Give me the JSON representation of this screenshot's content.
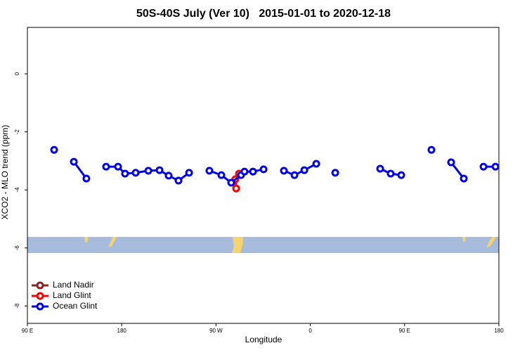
{
  "chart_data": {
    "type": "line",
    "title": "50S-40S July (Ver 10)   2015-01-01 to 2020-12-18",
    "x_label": "Longitude",
    "y_label": "XCO2 - MLO trend (ppm)",
    "xlim": [
      90,
      540
    ],
    "xticks": [
      {
        "value": 90,
        "label": "90 E"
      },
      {
        "value": 180,
        "label": "180"
      },
      {
        "value": 270,
        "label": "90 W"
      },
      {
        "value": 360,
        "label": "0"
      },
      {
        "value": 450,
        "label": "90 E"
      },
      {
        "value": 540,
        "label": "180"
      }
    ],
    "ylim": [
      -8.6,
      1.6
    ],
    "yticks": [
      0,
      -2,
      -4,
      -6,
      -8
    ],
    "legend": "bottom-left",
    "series": [
      {
        "name": "Land Nadir",
        "color": "#8b2323",
        "x": [],
        "values": []
      },
      {
        "name": "Land Glint",
        "color": "#ff0000",
        "x": [
          289.2,
          288.5,
          291.9
        ],
        "values": [
          -3.95,
          -3.63,
          -3.44
        ]
      },
      {
        "name": "Ocean Glint",
        "color": "#0000ee",
        "x": [
          115.5,
          null,
          134.3,
          146.3,
          null,
          165.1,
          176.5,
          183.2,
          193.3,
          205.4,
          216.1,
          224.8,
          234.2,
          244.3,
          null,
          263.7,
          275.1,
          284.5,
          293.9,
          297.2,
          305.3,
          315.4,
          null,
          334.8,
          344.9,
          354.3,
          365.7,
          null,
          383.8,
          null,
          426.7,
          436.7,
          446.8,
          null,
          475.6,
          null,
          494.4,
          506.5,
          null,
          525.3,
          536.7
        ],
        "values": [
          -2.62,
          null,
          -3.03,
          -3.61,
          null,
          -3.2,
          -3.2,
          -3.44,
          -3.41,
          -3.34,
          -3.32,
          -3.51,
          -3.68,
          -3.41,
          null,
          -3.34,
          -3.49,
          -3.75,
          -3.49,
          -3.37,
          -3.37,
          -3.29,
          null,
          -3.34,
          -3.49,
          -3.32,
          -3.1,
          null,
          -3.41,
          null,
          -3.27,
          -3.44,
          -3.49,
          null,
          -2.62,
          null,
          -3.05,
          -3.61,
          null,
          -3.2,
          -3.2
        ]
      }
    ]
  }
}
